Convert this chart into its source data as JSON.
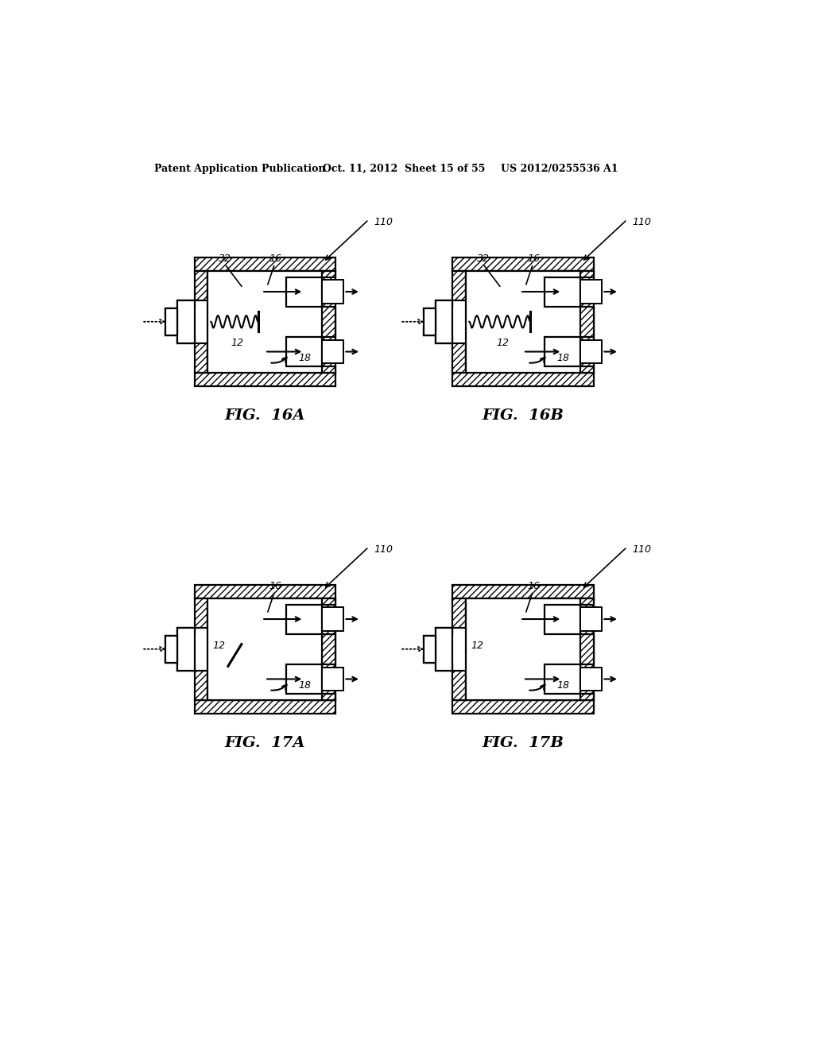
{
  "header_left": "Patent Application Publication",
  "header_mid": "Oct. 11, 2012  Sheet 15 of 55",
  "header_right": "US 2012/0255536 A1",
  "bg_color": "#ffffff",
  "figures": [
    {
      "label": "FIG.  16A",
      "ox": 148,
      "oy": 215,
      "has_spring": true,
      "spring_short": true,
      "ref32": true,
      "ref16": true,
      "ref12": true,
      "ref18": true,
      "show_110": true
    },
    {
      "label": "FIG.  16B",
      "ox": 570,
      "oy": 215,
      "has_spring": true,
      "spring_short": false,
      "ref32": true,
      "ref16": true,
      "ref12": true,
      "ref18": true,
      "show_110": true
    },
    {
      "label": "FIG.  17A",
      "ox": 148,
      "oy": 750,
      "has_spring": false,
      "spring_short": false,
      "ref32": false,
      "ref16": true,
      "ref12": true,
      "ref18": true,
      "show_110": true,
      "diag_line": true
    },
    {
      "label": "FIG.  17B",
      "ox": 570,
      "oy": 750,
      "has_spring": false,
      "spring_short": false,
      "ref32": false,
      "ref16": true,
      "ref12": true,
      "ref18": true,
      "show_110": true,
      "diag_line": false
    }
  ]
}
